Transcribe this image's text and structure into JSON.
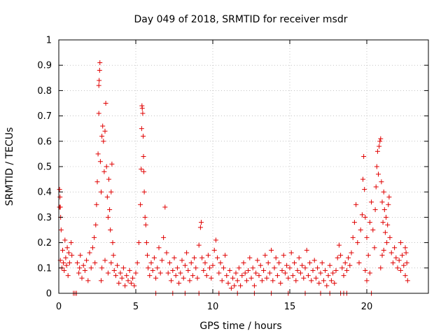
{
  "chart_data": {
    "type": "scatter",
    "title": "Day 049 of 2018, SRMTID for receiver msdr",
    "xlabel": "GPS time / hours",
    "ylabel": "SRMTID / TECUs",
    "xlim": [
      0,
      24
    ],
    "ylim": [
      0,
      1
    ],
    "xticks": [
      0,
      5,
      10,
      15,
      20
    ],
    "xtick_labels": [
      "0",
      "5",
      "10",
      "15",
      "20"
    ],
    "yticks": [
      0,
      0.1,
      0.2,
      0.3,
      0.4,
      0.5,
      0.6,
      0.7,
      0.8,
      0.9,
      1
    ],
    "ytick_labels": [
      "0",
      "0.1",
      "0.2",
      "0.3",
      "0.4",
      "0.5",
      "0.6",
      "0.7",
      "0.8",
      "0.9",
      "1"
    ],
    "grid": true,
    "marker": "+",
    "color": "#e00000",
    "series": [
      {
        "values": [
          [
            0.05,
            0.34
          ],
          [
            0.05,
            0.41
          ],
          [
            0.08,
            0.38
          ],
          [
            0.1,
            0.34
          ],
          [
            0.12,
            0.3
          ],
          [
            0.15,
            0.25
          ],
          [
            0.1,
            0.13
          ],
          [
            0.2,
            0.1
          ],
          [
            0.25,
            0.17
          ],
          [
            0.3,
            0.12
          ],
          [
            0.35,
            0.09
          ],
          [
            0.4,
            0.21
          ],
          [
            0.45,
            0.14
          ],
          [
            0.5,
            0.11
          ],
          [
            0.55,
            0.18
          ],
          [
            0.6,
            0.07
          ],
          [
            0.65,
            0.16
          ],
          [
            0.7,
            0.12
          ],
          [
            0.8,
            0.2
          ],
          [
            0.85,
            0.15
          ],
          [
            0.95,
            0.0
          ],
          [
            1.05,
            0.0
          ],
          [
            1.15,
            0.0
          ],
          [
            1.2,
            0.12
          ],
          [
            1.3,
            0.08
          ],
          [
            1.35,
            0.1
          ],
          [
            1.4,
            0.15
          ],
          [
            1.5,
            0.06
          ],
          [
            1.6,
            0.11
          ],
          [
            1.7,
            0.09
          ],
          [
            1.8,
            0.13
          ],
          [
            1.9,
            0.05
          ],
          [
            2.0,
            0.16
          ],
          [
            2.1,
            0.1
          ],
          [
            2.2,
            0.18
          ],
          [
            2.3,
            0.22
          ],
          [
            2.35,
            0.12
          ],
          [
            2.4,
            0.27
          ],
          [
            2.45,
            0.35
          ],
          [
            2.5,
            0.44
          ],
          [
            2.55,
            0.55
          ],
          [
            2.6,
            0.71
          ],
          [
            2.6,
            0.82
          ],
          [
            2.62,
            0.84
          ],
          [
            2.65,
            0.88
          ],
          [
            2.67,
            0.91
          ],
          [
            2.7,
            0.52
          ],
          [
            2.75,
            0.4
          ],
          [
            2.8,
            0.62
          ],
          [
            2.85,
            0.66
          ],
          [
            2.9,
            0.6
          ],
          [
            2.95,
            0.48
          ],
          [
            3.0,
            0.64
          ],
          [
            3.05,
            0.75
          ],
          [
            3.1,
            0.5
          ],
          [
            3.15,
            0.38
          ],
          [
            3.2,
            0.3
          ],
          [
            3.25,
            0.45
          ],
          [
            3.3,
            0.33
          ],
          [
            3.35,
            0.25
          ],
          [
            3.4,
            0.4
          ],
          [
            3.45,
            0.51
          ],
          [
            3.5,
            0.2
          ],
          [
            3.55,
            0.15
          ],
          [
            2.75,
            0.05
          ],
          [
            2.8,
            0.1
          ],
          [
            3.0,
            0.13
          ],
          [
            3.2,
            0.08
          ],
          [
            3.4,
            0.12
          ],
          [
            3.6,
            0.09
          ],
          [
            3.7,
            0.07
          ],
          [
            3.8,
            0.11
          ],
          [
            3.9,
            0.04
          ],
          [
            4.0,
            0.08
          ],
          [
            4.1,
            0.06
          ],
          [
            4.2,
            0.1
          ],
          [
            4.3,
            0.03
          ],
          [
            4.4,
            0.07
          ],
          [
            4.5,
            0.05
          ],
          [
            4.6,
            0.09
          ],
          [
            4.7,
            0.04
          ],
          [
            4.8,
            0.06
          ],
          [
            4.9,
            0.03
          ],
          [
            5.0,
            0.08
          ],
          [
            5.1,
            0.12
          ],
          [
            5.2,
            0.2
          ],
          [
            5.3,
            0.35
          ],
          [
            5.35,
            0.49
          ],
          [
            5.38,
            0.65
          ],
          [
            5.4,
            0.74
          ],
          [
            5.42,
            0.73
          ],
          [
            5.45,
            0.71
          ],
          [
            5.48,
            0.62
          ],
          [
            5.5,
            0.54
          ],
          [
            5.52,
            0.48
          ],
          [
            5.55,
            0.4
          ],
          [
            5.6,
            0.3
          ],
          [
            5.65,
            0.27
          ],
          [
            5.7,
            0.2
          ],
          [
            5.75,
            0.15
          ],
          [
            5.8,
            0.1
          ],
          [
            5.9,
            0.07
          ],
          [
            6.0,
            0.12
          ],
          [
            6.1,
            0.09
          ],
          [
            6.2,
            0.14
          ],
          [
            6.3,
            0.06
          ],
          [
            6.4,
            0.1
          ],
          [
            6.5,
            0.18
          ],
          [
            6.6,
            0.08
          ],
          [
            6.7,
            0.13
          ],
          [
            6.8,
            0.22
          ],
          [
            6.9,
            0.34
          ],
          [
            7.0,
            0.16
          ],
          [
            7.1,
            0.08
          ],
          [
            7.2,
            0.12
          ],
          [
            7.3,
            0.05
          ],
          [
            7.4,
            0.09
          ],
          [
            7.5,
            0.14
          ],
          [
            7.6,
            0.07
          ],
          [
            7.7,
            0.1
          ],
          [
            7.8,
            0.04
          ],
          [
            7.9,
            0.08
          ],
          [
            8.0,
            0.13
          ],
          [
            8.1,
            0.06
          ],
          [
            8.2,
            0.11
          ],
          [
            8.3,
            0.16
          ],
          [
            8.4,
            0.09
          ],
          [
            8.5,
            0.05
          ],
          [
            8.6,
            0.12
          ],
          [
            8.7,
            0.07
          ],
          [
            8.8,
            0.14
          ],
          [
            8.9,
            0.1
          ],
          [
            9.0,
            0.06
          ],
          [
            9.1,
            0.19
          ],
          [
            9.2,
            0.26
          ],
          [
            9.25,
            0.28
          ],
          [
            9.3,
            0.14
          ],
          [
            9.4,
            0.09
          ],
          [
            9.5,
            0.12
          ],
          [
            9.6,
            0.07
          ],
          [
            9.7,
            0.15
          ],
          [
            9.8,
            0.1
          ],
          [
            9.9,
            0.06
          ],
          [
            10.0,
            0.11
          ],
          [
            10.1,
            0.17
          ],
          [
            10.2,
            0.21
          ],
          [
            10.3,
            0.14
          ],
          [
            10.4,
            0.08
          ],
          [
            10.5,
            0.12
          ],
          [
            10.6,
            0.05
          ],
          [
            10.7,
            0.1
          ],
          [
            10.8,
            0.15
          ],
          [
            10.9,
            0.07
          ],
          [
            11.0,
            0.04
          ],
          [
            11.1,
            0.09
          ],
          [
            11.2,
            0.02
          ],
          [
            11.3,
            0.06
          ],
          [
            11.4,
            0.03
          ],
          [
            11.5,
            0.08
          ],
          [
            11.6,
            0.05
          ],
          [
            11.7,
            0.1
          ],
          [
            11.8,
            0.03
          ],
          [
            11.9,
            0.07
          ],
          [
            12.0,
            0.12
          ],
          [
            12.1,
            0.08
          ],
          [
            12.2,
            0.05
          ],
          [
            12.3,
            0.09
          ],
          [
            12.4,
            0.14
          ],
          [
            12.5,
            0.06
          ],
          [
            12.6,
            0.1
          ],
          [
            12.7,
            0.03
          ],
          [
            12.8,
            0.08
          ],
          [
            12.9,
            0.13
          ],
          [
            13.0,
            0.07
          ],
          [
            13.1,
            0.11
          ],
          [
            13.2,
            0.05
          ],
          [
            13.3,
            0.09
          ],
          [
            13.4,
            0.15
          ],
          [
            13.5,
            0.06
          ],
          [
            13.6,
            0.12
          ],
          [
            13.7,
            0.08
          ],
          [
            13.8,
            0.17
          ],
          [
            13.9,
            0.05
          ],
          [
            14.0,
            0.1
          ],
          [
            14.1,
            0.14
          ],
          [
            14.2,
            0.07
          ],
          [
            14.3,
            0.12
          ],
          [
            14.4,
            0.04
          ],
          [
            14.5,
            0.09
          ],
          [
            14.6,
            0.15
          ],
          [
            14.7,
            0.08
          ],
          [
            14.8,
            0.11
          ],
          [
            14.9,
            0.06
          ],
          [
            15.0,
            0.1
          ],
          [
            15.1,
            0.16
          ],
          [
            15.2,
            0.07
          ],
          [
            15.3,
            0.12
          ],
          [
            15.4,
            0.05
          ],
          [
            15.5,
            0.09
          ],
          [
            15.6,
            0.14
          ],
          [
            15.7,
            0.08
          ],
          [
            15.8,
            0.11
          ],
          [
            15.9,
            0.06
          ],
          [
            16.0,
            0.1
          ],
          [
            16.1,
            0.17
          ],
          [
            16.2,
            0.07
          ],
          [
            16.3,
            0.12
          ],
          [
            16.4,
            0.05
          ],
          [
            16.5,
            0.09
          ],
          [
            16.6,
            0.13
          ],
          [
            16.7,
            0.06
          ],
          [
            16.8,
            0.1
          ],
          [
            16.9,
            0.04
          ],
          [
            17.0,
            0.08
          ],
          [
            17.1,
            0.12
          ],
          [
            17.2,
            0.05
          ],
          [
            17.3,
            0.09
          ],
          [
            17.4,
            0.03
          ],
          [
            17.5,
            0.07
          ],
          [
            17.6,
            0.11
          ],
          [
            17.7,
            0.05
          ],
          [
            17.8,
            0.08
          ],
          [
            17.9,
            0.04
          ],
          [
            17.6,
            0.0
          ],
          [
            18.3,
            0.0
          ],
          [
            18.5,
            0.0
          ],
          [
            18.7,
            0.0
          ],
          [
            18.0,
            0.09
          ],
          [
            18.1,
            0.14
          ],
          [
            18.2,
            0.19
          ],
          [
            18.3,
            0.15
          ],
          [
            18.4,
            0.1
          ],
          [
            18.5,
            0.07
          ],
          [
            18.6,
            0.12
          ],
          [
            18.7,
            0.09
          ],
          [
            18.8,
            0.14
          ],
          [
            18.9,
            0.11
          ],
          [
            19.0,
            0.16
          ],
          [
            19.1,
            0.22
          ],
          [
            19.2,
            0.28
          ],
          [
            19.3,
            0.35
          ],
          [
            19.4,
            0.2
          ],
          [
            19.5,
            0.12
          ],
          [
            19.6,
            0.25
          ],
          [
            19.7,
            0.31
          ],
          [
            19.75,
            0.45
          ],
          [
            19.8,
            0.54
          ],
          [
            19.85,
            0.41
          ],
          [
            19.9,
            0.3
          ],
          [
            20.0,
            0.22
          ],
          [
            20.1,
            0.15
          ],
          [
            20.2,
            0.28
          ],
          [
            20.3,
            0.36
          ],
          [
            20.4,
            0.25
          ],
          [
            20.5,
            0.18
          ],
          [
            20.55,
            0.33
          ],
          [
            20.6,
            0.42
          ],
          [
            20.65,
            0.5
          ],
          [
            20.7,
            0.56
          ],
          [
            20.75,
            0.47
          ],
          [
            20.8,
            0.58
          ],
          [
            20.85,
            0.6
          ],
          [
            20.9,
            0.61
          ],
          [
            20.95,
            0.44
          ],
          [
            21.0,
            0.36
          ],
          [
            21.05,
            0.28
          ],
          [
            21.1,
            0.4
          ],
          [
            21.15,
            0.33
          ],
          [
            21.2,
            0.24
          ],
          [
            21.25,
            0.3
          ],
          [
            21.3,
            0.2
          ],
          [
            21.35,
            0.27
          ],
          [
            21.4,
            0.35
          ],
          [
            21.45,
            0.38
          ],
          [
            21.5,
            0.22
          ],
          [
            21.6,
            0.16
          ],
          [
            21.7,
            0.12
          ],
          [
            21.8,
            0.18
          ],
          [
            21.9,
            0.14
          ],
          [
            22.0,
            0.1
          ],
          [
            22.1,
            0.13
          ],
          [
            22.2,
            0.09
          ],
          [
            22.3,
            0.15
          ],
          [
            22.4,
            0.11
          ],
          [
            22.5,
            0.07
          ],
          [
            22.6,
            0.12
          ],
          [
            22.65,
            0.05
          ],
          [
            20.3,
            0.0
          ],
          [
            20.9,
            0.1
          ],
          [
            21.1,
            0.17
          ],
          [
            21.0,
            0.15
          ],
          [
            20.2,
            0.08
          ],
          [
            20.0,
            0.05
          ],
          [
            19.9,
            0.09
          ],
          [
            22.2,
            0.2
          ],
          [
            22.5,
            0.18
          ],
          [
            22.55,
            0.16
          ],
          [
            6.3,
            0.0
          ],
          [
            7.4,
            0.0
          ],
          [
            8.2,
            0.0
          ],
          [
            9.1,
            0.0
          ],
          [
            10.4,
            0.0
          ],
          [
            11.6,
            0.0
          ],
          [
            12.7,
            0.0
          ],
          [
            13.8,
            0.0
          ],
          [
            14.9,
            0.0
          ],
          [
            16.0,
            0.0
          ],
          [
            17.0,
            0.0
          ]
        ]
      }
    ]
  }
}
